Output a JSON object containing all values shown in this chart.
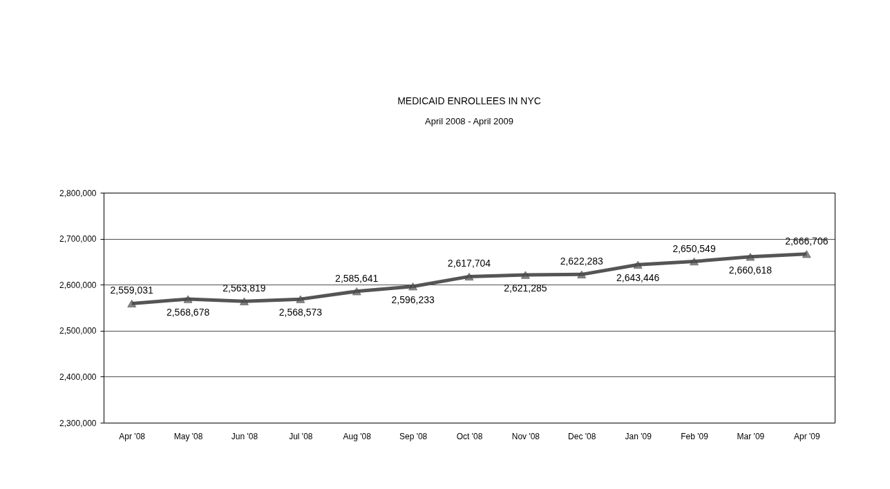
{
  "chart_data": {
    "type": "line",
    "title": "MEDICAID ENROLLEES IN NYC",
    "subtitle": "April 2008 - April 2009",
    "categories": [
      "Apr '08",
      "May '08",
      "Jun '08",
      "Jul '08",
      "Aug '08",
      "Sep '08",
      "Oct '08",
      "Nov '08",
      "Dec '08",
      "Jan '09",
      "Feb '09",
      "Mar '09",
      "Apr '09"
    ],
    "series": [
      {
        "color": "#555555",
        "values": [
          2559031,
          2568678,
          2563819,
          2568573,
          2585641,
          2596233,
          2617704,
          2621285,
          2622283,
          2643446,
          2650549,
          2660618,
          2666706
        ],
        "value_labels": [
          "2,559,031",
          "2,568,678",
          "2,563,819",
          "2,568,573",
          "2,585,641",
          "2,596,233",
          "2,617,704",
          "2,621,285",
          "2,622,283",
          "2,643,446",
          "2,650,549",
          "2,660,618",
          "2,666,706"
        ]
      }
    ],
    "ylim": [
      2300000,
      2800000
    ],
    "yticks": [
      {
        "value": 2300000,
        "label": "2,300,000"
      },
      {
        "value": 2400000,
        "label": "2,400,000"
      },
      {
        "value": 2500000,
        "label": "2,500,000"
      },
      {
        "value": 2600000,
        "label": "2,600,000"
      },
      {
        "value": 2700000,
        "label": "2,700,000"
      },
      {
        "value": 2800000,
        "label": "2,800,000"
      }
    ],
    "grid": "y",
    "marker": "triangle",
    "line_style": "solid"
  }
}
